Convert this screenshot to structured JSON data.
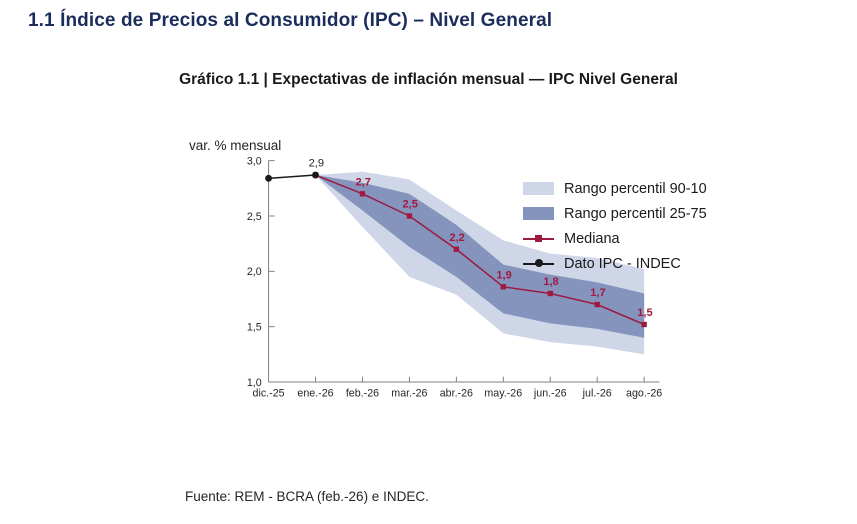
{
  "page": {
    "section_title": "1.1 Índice de Precios al Consumidor (IPC) – Nivel General",
    "chart_title": "Gráfico 1.1 | Expectativas de inflación mensual — IPC Nivel General",
    "unit_label": "var. % mensual",
    "source_note": "Fuente: REM - BCRA (feb.-26) e INDEC."
  },
  "legend": [
    {
      "label": "Rango percentil 90-10",
      "swatch": "band-light"
    },
    {
      "label": "Rango percentil 25-75",
      "swatch": "band-dark"
    },
    {
      "label": "Mediana",
      "swatch": "red-line-square"
    },
    {
      "label": "Dato IPC - INDEC",
      "swatch": "black-line-circle"
    }
  ],
  "colors": {
    "title_navy": "#1b2d5c",
    "band_light": "#cfd6e8",
    "band_dark": "#8594bd",
    "median": "#9e1a3f",
    "ipc": "#1a1a1a",
    "axis": "#7f7f7f",
    "tick_text": "#262626"
  },
  "chart_data": {
    "type": "line",
    "subtype": "fan-chart-with-percentile-bands",
    "title": "Gráfico 1.1 | Expectativas de inflación mensual — IPC Nivel General",
    "xlabel": "",
    "ylabel": "var. % mensual",
    "ylim": [
      1.0,
      3.0
    ],
    "grid": false,
    "legend_position": "top-right-inside",
    "categories": [
      "dic.-25",
      "ene.-26",
      "feb.-26",
      "mar.-26",
      "abr.-26",
      "may.-26",
      "jun.-26",
      "jul.-26",
      "ago.-26"
    ],
    "yticks": [
      {
        "value": 3.0,
        "label": "3,0"
      },
      {
        "value": 2.5,
        "label": "2,5"
      },
      {
        "value": 2.0,
        "label": "2,0"
      },
      {
        "value": 1.5,
        "label": "1,5"
      },
      {
        "value": 1.0,
        "label": "1,0"
      }
    ],
    "series": [
      {
        "name": "Rango percentil 90-10",
        "type": "band",
        "upper": [
          null,
          2.87,
          2.9,
          2.83,
          2.55,
          2.28,
          2.16,
          2.12,
          2.02
        ],
        "lower": [
          null,
          2.87,
          2.4,
          1.95,
          1.79,
          1.44,
          1.36,
          1.32,
          1.25
        ]
      },
      {
        "name": "Rango percentil 25-75",
        "type": "band",
        "upper": [
          null,
          2.87,
          2.8,
          2.7,
          2.42,
          2.06,
          1.97,
          1.9,
          1.8
        ],
        "lower": [
          null,
          2.87,
          2.55,
          2.22,
          1.95,
          1.62,
          1.53,
          1.48,
          1.4
        ]
      },
      {
        "name": "Mediana",
        "type": "line",
        "marker": "square",
        "values": [
          null,
          2.87,
          2.7,
          2.5,
          2.2,
          1.86,
          1.8,
          1.7,
          1.52
        ],
        "labels": [
          null,
          null,
          "2,7",
          "2,5",
          "2,2",
          "1,9",
          "1,8",
          "1,7",
          "1,5"
        ]
      },
      {
        "name": "Dato IPC - INDEC",
        "type": "line",
        "marker": "circle",
        "values": [
          2.84,
          2.87,
          null,
          null,
          null,
          null,
          null,
          null,
          null
        ],
        "labels": [
          null,
          "2,9",
          null,
          null,
          null,
          null,
          null,
          null,
          null
        ]
      }
    ]
  }
}
